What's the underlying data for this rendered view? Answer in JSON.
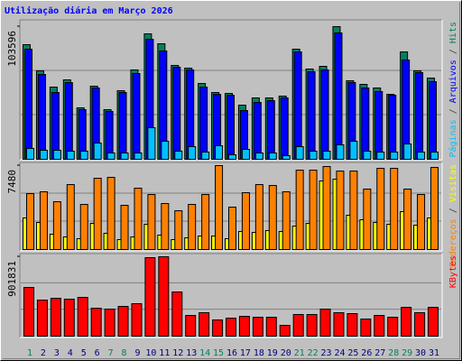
{
  "title": "Utilização diária em Março 2026",
  "legend_separator": " / ",
  "chart_data": [
    {
      "type": "bar",
      "ylim": [
        0,
        103596
      ],
      "yticks": [
        103596
      ],
      "series": [
        {
          "name": "Páginas",
          "color": "#00c0ff",
          "values": [
            8456,
            7047,
            7047,
            6342,
            6342,
            12685,
            4933,
            4933,
            4933,
            24665,
            14094,
            6342,
            9866,
            5638,
            10571,
            3524,
            7752,
            4933,
            4933,
            2819,
            9866,
            6342,
            6342,
            11275,
            14094,
            6342,
            5638,
            5638,
            11980,
            5638,
            5638
          ]
        },
        {
          "name": "Arquivos",
          "color": "#0000ff",
          "values": [
            85973,
            66242,
            52148,
            59900,
            38759,
            55671,
            37349,
            52148,
            66947,
            93725,
            84564,
            71879,
            69765,
            56376,
            50738,
            50034,
            38054,
            44396,
            45806,
            47920,
            83859,
            68356,
            69765,
            98658,
            59900,
            55671,
            52853,
            50034,
            77517,
            67651,
            60604
          ]
        },
        {
          "name": "Hits",
          "color": "#008060",
          "values": [
            89497,
            69061,
            56376,
            62014,
            40168,
            57081,
            38759,
            53557,
            69765,
            97953,
            90202,
            73289,
            71175,
            59195,
            52148,
            51443,
            42282,
            47920,
            47920,
            49329,
            85973,
            70470,
            72584,
            103596,
            61309,
            58490,
            55671,
            50738,
            83859,
            69061,
            63423
          ]
        }
      ]
    },
    {
      "type": "bar",
      "ylim": [
        0,
        7480
      ],
      "yticks": [
        7480
      ],
      "series": [
        {
          "name": "Endereços",
          "color": "#ff8000",
          "values": [
            4985,
            5146,
            4261,
            5789,
            4020,
            6352,
            6432,
            3940,
            5467,
            4904,
            4100,
            3457,
            4020,
            4904,
            7480,
            3779,
            5065,
            5789,
            5708,
            5146,
            7075,
            7075,
            7397,
            6995,
            6995,
            5387,
            7236,
            7236,
            5387,
            4904,
            7316
          ]
        },
        {
          "name": "Visitas",
          "color": "#ffff00",
          "values": [
            2814,
            2412,
            1367,
            1126,
            965,
            2332,
            1447,
            884,
            1126,
            2251,
            1286,
            884,
            1045,
            1206,
            1206,
            965,
            1608,
            1528,
            1688,
            1608,
            2090,
            2332,
            6110,
            6271,
            3055,
            2653,
            2412,
            2251,
            3377,
            2171,
            2814
          ]
        }
      ]
    },
    {
      "type": "bar",
      "ylim": [
        0,
        901831
      ],
      "yticks": [
        901831
      ],
      "categories": [
        "1",
        "2",
        "3",
        "4",
        "5",
        "6",
        "7",
        "8",
        "9",
        "10",
        "11",
        "12",
        "13",
        "14",
        "15",
        "16",
        "17",
        "18",
        "19",
        "20",
        "21",
        "22",
        "23",
        "24",
        "25",
        "26",
        "27",
        "28",
        "29",
        "30",
        "31"
      ],
      "category_colors": [
        "#008060",
        "#000080",
        "#000080",
        "#000080",
        "#000080",
        "#000080",
        "#008060",
        "#008060",
        "#000080",
        "#000080",
        "#000080",
        "#000080",
        "#000080",
        "#008060",
        "#008060",
        "#000080",
        "#000080",
        "#000080",
        "#000080",
        "#000080",
        "#008060",
        "#008060",
        "#000080",
        "#000080",
        "#000080",
        "#000080",
        "#000080",
        "#008060",
        "#008060",
        "#000080",
        "#000080"
      ],
      "series": [
        {
          "name": "KBytes",
          "color": "#ff0000",
          "values": [
            553392,
            409920,
            430416,
            420168,
            440664,
            317688,
            307440,
            338184,
            368928,
            891576,
            901831,
            502152,
            235704,
            266448,
            184464,
            204960,
            225456,
            215208,
            215208,
            122976,
            245952,
            245952,
            307440,
            266448,
            256200,
            194712,
            235704,
            215208,
            327936,
            266448,
            327936
          ]
        }
      ]
    }
  ]
}
